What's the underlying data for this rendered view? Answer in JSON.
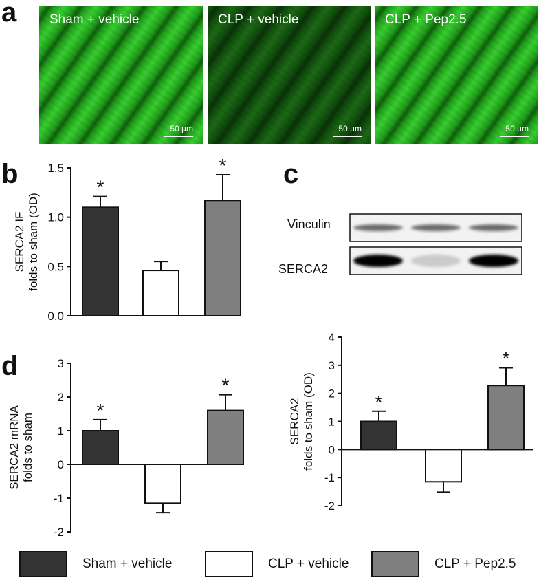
{
  "panels": {
    "a": "a",
    "b": "b",
    "c": "c",
    "d": "d"
  },
  "colors": {
    "sham_vehicle": "#333333",
    "clp_vehicle": "#ffffff",
    "clp_pep": "#7f7f7f",
    "fluor_bright": "#2ed62a",
    "fluor_dim": "#0c3a09"
  },
  "micrographs": [
    {
      "label": "Sham + vehicle",
      "scale": "50 µm",
      "brightness": 1.0
    },
    {
      "label": "CLP + vehicle",
      "scale": "50 µm",
      "brightness": 0.35
    },
    {
      "label": "CLP + Pep2.5",
      "scale": "50 µm",
      "brightness": 0.95
    }
  ],
  "blot": {
    "rows": [
      {
        "label": "Vinculin",
        "band_intensity": [
          0.55,
          0.55,
          0.55
        ]
      },
      {
        "label": "SERCA2",
        "band_intensity": [
          1.0,
          0.12,
          1.0
        ]
      }
    ]
  },
  "legend": [
    {
      "label": "Sham + vehicle",
      "color": "#333333"
    },
    {
      "label": "CLP + vehicle",
      "color": "#ffffff"
    },
    {
      "label": "CLP + Pep2.5",
      "color": "#7f7f7f"
    }
  ],
  "chart_data": [
    {
      "panel": "b",
      "type": "bar",
      "ylabel_lines": [
        "SERCA2 IF",
        "folds to sham (OD)"
      ],
      "ylim": [
        0,
        1.5
      ],
      "yticks": [
        "0.0",
        "0.5",
        "1.0",
        "1.5"
      ],
      "grid": false,
      "series": [
        {
          "name": "Sham + vehicle",
          "value": 1.1,
          "error": 0.11,
          "significant": "*",
          "color": "#333333"
        },
        {
          "name": "CLP + vehicle",
          "value": 0.46,
          "error": 0.09,
          "significant": "",
          "color": "#ffffff"
        },
        {
          "name": "CLP + Pep2.5",
          "value": 1.17,
          "error": 0.26,
          "significant": "*",
          "color": "#7f7f7f"
        }
      ]
    },
    {
      "panel": "d-left",
      "type": "bar",
      "ylabel_lines": [
        "SERCA2 mRNA",
        "folds to sham"
      ],
      "ylim": [
        -2,
        3
      ],
      "yticks": [
        "-2",
        "-1",
        "0",
        "1",
        "2",
        "3"
      ],
      "grid": false,
      "series": [
        {
          "name": "Sham + vehicle",
          "value": 1.0,
          "error": 0.33,
          "significant": "*",
          "color": "#333333"
        },
        {
          "name": "CLP + vehicle",
          "value": -1.15,
          "error": 0.28,
          "significant": "",
          "color": "#ffffff"
        },
        {
          "name": "CLP + Pep2.5",
          "value": 1.6,
          "error": 0.47,
          "significant": "*",
          "color": "#7f7f7f"
        }
      ]
    },
    {
      "panel": "d-right",
      "type": "bar",
      "ylabel_lines": [
        "SERCA2",
        "folds to sham (OD)"
      ],
      "ylim": [
        -2,
        4
      ],
      "yticks": [
        "-2",
        "-1",
        "0",
        "1",
        "2",
        "3",
        "4"
      ],
      "grid": false,
      "series": [
        {
          "name": "Sham + vehicle",
          "value": 1.0,
          "error": 0.36,
          "significant": "*",
          "color": "#333333"
        },
        {
          "name": "CLP + vehicle",
          "value": -1.15,
          "error": 0.37,
          "significant": "",
          "color": "#ffffff"
        },
        {
          "name": "CLP + Pep2.5",
          "value": 2.28,
          "error": 0.63,
          "significant": "*",
          "color": "#7f7f7f"
        }
      ]
    }
  ]
}
